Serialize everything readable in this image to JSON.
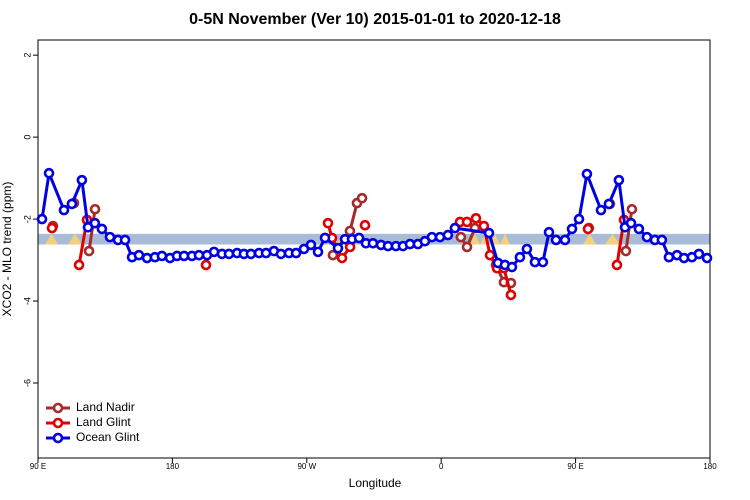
{
  "chart_data": {
    "type": "line",
    "title": "0-5N November (Ver 10)   2015-01-01 to 2020-12-18",
    "x_label": "Longitude",
    "y_label": "XCO2 - MLO trend (ppm)",
    "xlim": [
      90,
      540
    ],
    "xticks": [
      {
        "value": 90,
        "label": "90 E"
      },
      180,
      {
        "value": 270,
        "label": "90 W"
      },
      {
        "value": 360,
        "label": "0"
      },
      {
        "value": 450,
        "label": "90 E"
      },
      {
        "value": 540,
        "label": "180"
      }
    ],
    "ylim": [
      -7.83,
      2.37
    ],
    "yticks": [
      2,
      0,
      -2,
      -4,
      -6
    ],
    "reference_band": [
      -2.62,
      -2.36
    ],
    "band_color": "#a8bcd8",
    "highlight_ranges": [
      [
        94.7,
        103.4
      ],
      [
        110.1,
        119.5
      ],
      [
        285.5,
        295.6
      ],
      [
        379.3,
        406.1
      ],
      [
        455,
        463.7
      ],
      [
        469.7,
        479.7
      ]
    ],
    "highlight_color": "#f5cf7a",
    "legend": "bottom-left",
    "series": [
      {
        "name": "Land Nadir",
        "color": "#a52a2a",
        "x": [
          100,
          null,
          114.1,
          null,
          124.2,
          128.2,
          null,
          287.5,
          298.9,
          303.6,
          307.0,
          null,
          373.2,
          377.3,
          382.6,
          null,
          396.7,
          402.0,
          406.7,
          null,
          458.9,
          null,
          473.0,
          null,
          483.7,
          487.7
        ],
        "values": [
          -2.17,
          null,
          -1.61,
          null,
          -2.78,
          -1.76,
          null,
          -2.88,
          -2.29,
          -1.61,
          -1.49,
          null,
          -2.44,
          -2.68,
          -2.22,
          null,
          -3.12,
          -3.54,
          -3.56,
          null,
          -2.22,
          null,
          -1.63,
          null,
          -2.78,
          -1.76
        ]
      },
      {
        "name": "Land Glint",
        "color": "#e00000",
        "x": [
          99.4,
          null,
          117.5,
          122.8,
          null,
          202.5,
          null,
          284.2,
          286.9,
          293.6,
          299.0,
          null,
          309.0,
          null,
          372.6,
          377.3,
          383.3,
          388.6,
          392.7,
          397.4,
          402.0,
          406.7,
          null,
          458.3,
          null,
          477.7,
          482.4
        ],
        "values": [
          -2.22,
          null,
          -3.12,
          -2.02,
          null,
          -3.12,
          null,
          -2.1,
          -2.46,
          -2.95,
          -2.68,
          null,
          -2.15,
          null,
          -2.07,
          -2.07,
          -1.98,
          -2.17,
          -2.88,
          -3.2,
          -3.2,
          -3.85,
          null,
          -2.24,
          null,
          -3.12,
          -2.02
        ]
      },
      {
        "name": "Ocean Glint",
        "color": "#0000e0",
        "x": [
          92.7,
          97.4,
          107.4,
          112.7,
          119.4,
          123.5,
          128.1,
          132.8,
          138.2,
          143.6,
          148.3,
          153.0,
          157.6,
          163.0,
          168.3,
          173.0,
          178.4,
          183.1,
          187.8,
          193.1,
          197.8,
          203.2,
          207.9,
          213.2,
          217.9,
          223.3,
          227.9,
          232.6,
          238.0,
          242.7,
          248.0,
          252.7,
          258.1,
          262.8,
          268.1,
          272.8,
          277.5,
          282.2,
          290.9,
          295.6,
          300.3,
          305.0,
          309.6,
          314.3,
          319.7,
          324.4,
          329.7,
          334.4,
          339.1,
          344.4,
          349.1,
          353.8,
          359.2,
          364.5,
          369.2,
          392.0,
          398.0,
          402.7,
          407.4,
          412.7,
          417.4,
          422.8,
          428.1,
          432.2,
          436.9,
          442.9,
          447.6,
          452.3,
          457.6,
          467.0,
          472.3,
          479.0,
          483.1,
          487.1,
          492.4,
          497.8,
          503.1,
          507.8,
          512.5,
          517.9,
          522.6,
          527.9,
          532.6,
          538.0
        ],
        "values": [
          -2.0,
          -0.88,
          -1.78,
          -1.63,
          -1.05,
          -2.2,
          -2.1,
          -2.24,
          -2.44,
          -2.51,
          -2.51,
          -2.93,
          -2.88,
          -2.95,
          -2.93,
          -2.9,
          -2.95,
          -2.9,
          -2.9,
          -2.9,
          -2.88,
          -2.88,
          -2.8,
          -2.85,
          -2.85,
          -2.83,
          -2.85,
          -2.85,
          -2.83,
          -2.83,
          -2.78,
          -2.85,
          -2.83,
          -2.83,
          -2.73,
          -2.63,
          -2.8,
          -2.46,
          -2.71,
          -2.49,
          -2.49,
          -2.46,
          -2.59,
          -2.59,
          -2.63,
          -2.66,
          -2.66,
          -2.66,
          -2.61,
          -2.61,
          -2.54,
          -2.44,
          -2.44,
          -2.39,
          -2.22,
          -2.34,
          -3.07,
          -3.12,
          -3.17,
          -2.93,
          -2.73,
          -3.05,
          -3.05,
          -2.32,
          -2.51,
          -2.51,
          -2.24,
          -2.0,
          -0.9,
          -1.78,
          -1.63,
          -1.05,
          -2.2,
          -2.1,
          -2.24,
          -2.44,
          -2.51,
          -2.51,
          -2.93,
          -2.88,
          -2.95,
          -2.93,
          -2.85,
          -2.95
        ]
      }
    ]
  }
}
